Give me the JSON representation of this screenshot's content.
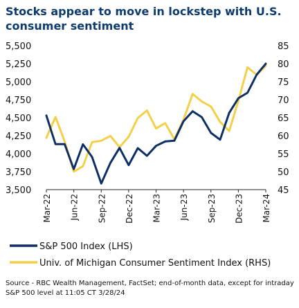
{
  "title": "Stocks appear to move in lockstep with U.S. consumer sentiment",
  "source": "Source - RBC Wealth Management, FactSet; end-of-month data, except for intraday S&P 500 level at 11:05 CT 3/28/24",
  "colors": {
    "sp500": "#0d2f66",
    "michigan": "#f4cf4a",
    "text": "#111111",
    "title": "#0d3b6e"
  },
  "chart_data": {
    "type": "line",
    "x_tick_labels": [
      "Mar-22",
      "Jun-22",
      "Sep-22",
      "Dec-22",
      "Mar-23",
      "Jun-23",
      "Sep-23",
      "Dec-23",
      "Mar-24"
    ],
    "x": [
      "Mar-22",
      "Apr-22",
      "May-22",
      "Jun-22",
      "Jul-22",
      "Aug-22",
      "Sep-22",
      "Oct-22",
      "Nov-22",
      "Dec-22",
      "Jan-23",
      "Feb-23",
      "Mar-23",
      "Apr-23",
      "May-23",
      "Jun-23",
      "Jul-23",
      "Aug-23",
      "Sep-23",
      "Oct-23",
      "Nov-23",
      "Dec-23",
      "Jan-24",
      "Feb-24",
      "Mar-24"
    ],
    "ylim_left": [
      3500,
      5500
    ],
    "yticks_left": [
      "3,500",
      "3,750",
      "4,000",
      "4,250",
      "4,500",
      "4,750",
      "5,000",
      "5,250",
      "5,500"
    ],
    "ylim_right": [
      45,
      85
    ],
    "yticks_right": [
      "45",
      "50",
      "55",
      "60",
      "65",
      "70",
      "75",
      "80",
      "85"
    ],
    "series": [
      {
        "name": "S&P 500 Index (LHS)",
        "axis": "left",
        "values": [
          4530,
          4132,
          4132,
          3785,
          4130,
          3955,
          3586,
          3872,
          4080,
          3840,
          4077,
          3970,
          4109,
          4169,
          4180,
          4450,
          4589,
          4508,
          4288,
          4194,
          4568,
          4770,
          4846,
          5096,
          5250
        ]
      },
      {
        "name": "Univ. of Michigan Consumer Sentiment Index (RHS)",
        "axis": "right",
        "values": [
          59.4,
          65.2,
          58.4,
          50.0,
          51.5,
          58.2,
          58.6,
          59.9,
          56.8,
          59.7,
          64.9,
          67.0,
          62.0,
          63.5,
          59.0,
          64.4,
          71.6,
          69.5,
          68.1,
          63.8,
          61.3,
          69.7,
          79.0,
          76.9,
          79.4
        ]
      }
    ]
  }
}
